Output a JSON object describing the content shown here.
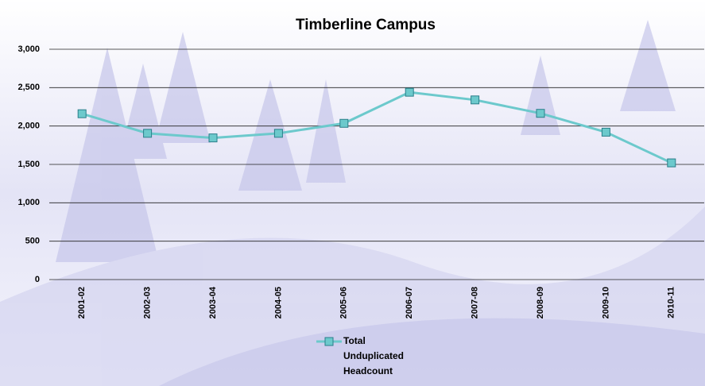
{
  "chart_data": {
    "type": "line",
    "title": "Timberline Campus",
    "categories": [
      "2001-02",
      "2002-03",
      "2003-04",
      "2004-05",
      "2005-06",
      "2006-07",
      "2007-08",
      "2008-09",
      "2009-10",
      "2010-11"
    ],
    "series": [
      {
        "name": "Total Unduplicated Headcount",
        "color": "#6cc9cc",
        "values": [
          2160,
          1905,
          1845,
          1905,
          2035,
          2440,
          2340,
          2165,
          1920,
          1520
        ]
      }
    ],
    "ylim": [
      0,
      3000
    ],
    "yticks": [
      0,
      500,
      {
        "value": 1000,
        "label": "1,000"
      },
      {
        "value": 1500,
        "label": "1,500"
      },
      {
        "value": 2000,
        "label": "2,000"
      },
      {
        "value": 2500,
        "label": "2,500"
      },
      {
        "value": 3000,
        "label": "3,000"
      }
    ],
    "grid": true
  }
}
